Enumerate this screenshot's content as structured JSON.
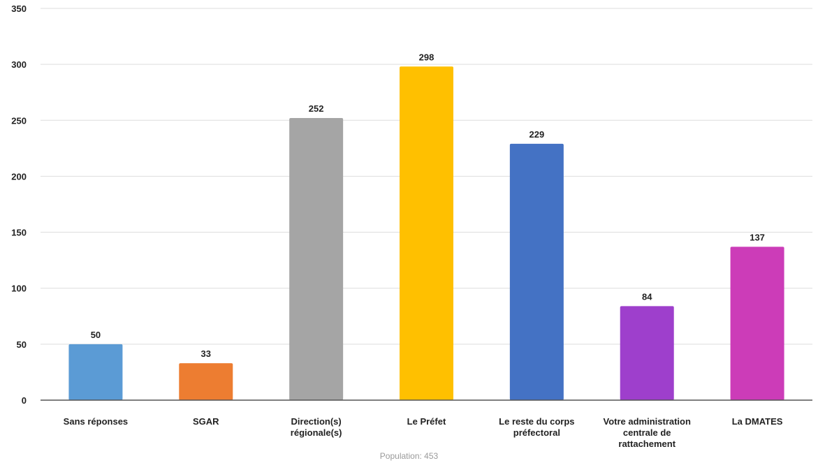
{
  "chart_data": {
    "type": "bar",
    "categories": [
      "Sans réponses",
      "SGAR",
      "Direction(s) régionale(s)",
      "Le Préfet",
      "Le reste du corps préfectoral",
      "Votre administration centrale de rattachement",
      "La DMATES"
    ],
    "category_lines": [
      [
        "Sans réponses"
      ],
      [
        "SGAR"
      ],
      [
        "Direction(s)",
        "régionale(s)"
      ],
      [
        "Le Préfet"
      ],
      [
        "Le reste du corps",
        "préfectoral"
      ],
      [
        "Votre administration",
        "centrale de",
        "rattachement"
      ],
      [
        "La DMATES"
      ]
    ],
    "values": [
      50,
      33,
      252,
      298,
      229,
      84,
      137
    ],
    "colors": [
      "#5b9bd5",
      "#ed7d31",
      "#a5a5a5",
      "#ffc000",
      "#4472c4",
      "#9e3fcc",
      "#cc3cb8"
    ],
    "ylim": [
      0,
      350
    ],
    "yticks": [
      0,
      50,
      100,
      150,
      200,
      250,
      300,
      350
    ],
    "grid": true,
    "footnote": "Population: 453"
  }
}
